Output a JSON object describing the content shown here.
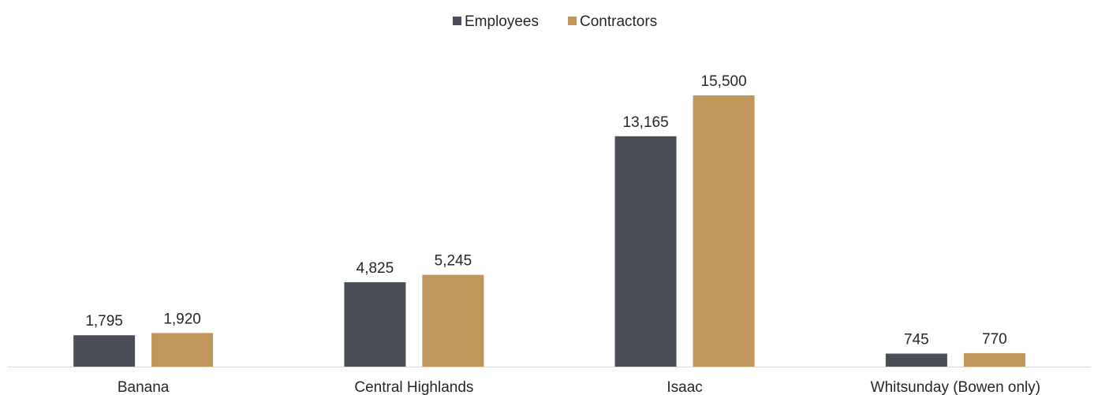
{
  "chart_data": {
    "type": "bar",
    "title": "",
    "xlabel": "",
    "ylabel": "",
    "categories": [
      "Banana",
      "Central Highlands",
      "Isaac",
      "Whitsunday (Bowen only)"
    ],
    "series": [
      {
        "name": "Employees",
        "values": [
          1795,
          4825,
          13165,
          745
        ],
        "labels": [
          "1,795",
          "4,825",
          "13,165",
          "745"
        ],
        "color": "#4a4f57"
      },
      {
        "name": "Contractors",
        "values": [
          1920,
          5245,
          15500,
          770
        ],
        "labels": [
          "1,920",
          "5,245",
          "15,500",
          "770"
        ],
        "color": "#c0965a"
      }
    ],
    "ylim": [
      0,
      15500
    ],
    "grid": false,
    "legend": "top-center",
    "baseline_color": "#d9d9d9"
  }
}
